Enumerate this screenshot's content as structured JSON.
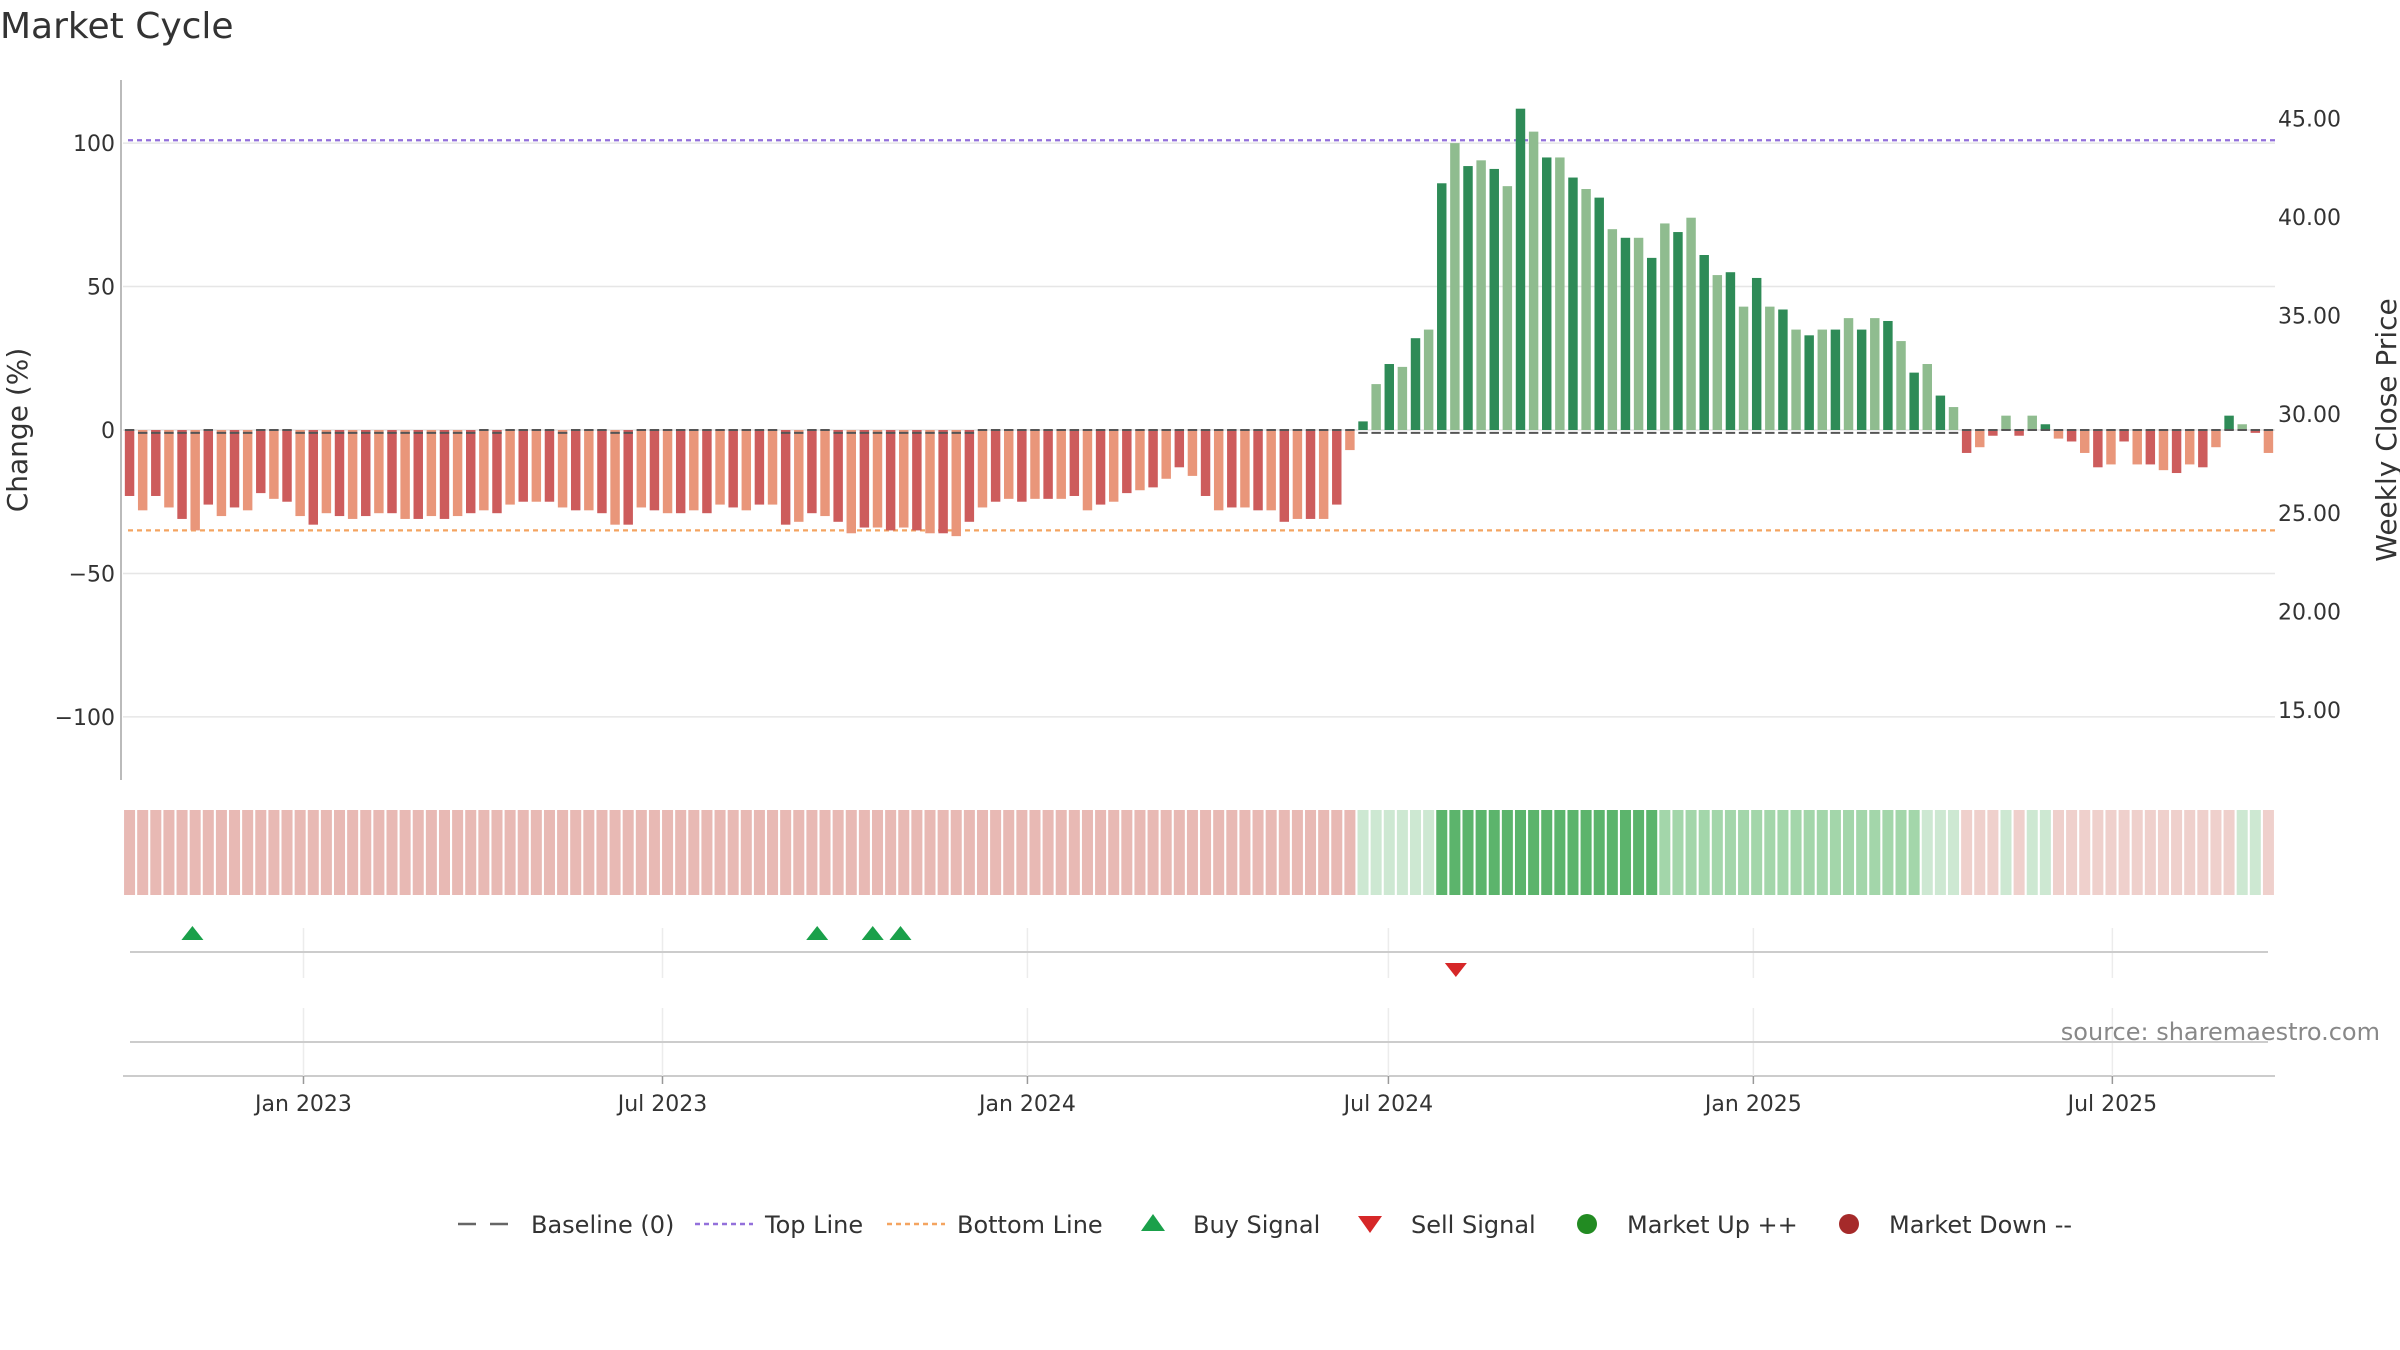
{
  "chart_data": {
    "type": "bar",
    "title": "Market Cycle",
    "ylabel_left": "Change (%)",
    "ylabel_right": "Weekly Close Price",
    "ylim_left": [
      -122,
      122
    ],
    "ylim_right": [
      11.45,
      46.95
    ],
    "yticks_left": [
      100,
      50,
      0,
      -50,
      -100
    ],
    "ytick_labels_left": [
      "100",
      "50",
      "0",
      "−100"
    ],
    "ytick_labels_left_full": [
      "100",
      "50",
      "0",
      "−50",
      "−100"
    ],
    "yticks_right": [
      45,
      40,
      35,
      30,
      25,
      20,
      15
    ],
    "ytick_labels_right": [
      "45.00",
      "40.00",
      "35.00",
      "30.00",
      "25.00",
      "20.00",
      "15.00"
    ],
    "x_start": "2022-10-02",
    "x_end": "2025-09-21",
    "xticks": [
      {
        "date": "2023-01-01",
        "label": "Jan 2023"
      },
      {
        "date": "2023-07-01",
        "label": "Jul 2023"
      },
      {
        "date": "2024-01-01",
        "label": "Jan 2024"
      },
      {
        "date": "2024-07-01",
        "label": "Jul 2024"
      },
      {
        "date": "2025-01-01",
        "label": "Jan 2025"
      },
      {
        "date": "2025-07-01",
        "label": "Jul 2025"
      }
    ],
    "top_line": 101,
    "bottom_line": -35,
    "baseline": 0,
    "series": [
      {
        "values": [
          -23,
          -28,
          -23,
          -27,
          -31,
          -35,
          -26,
          -30,
          -27,
          -28,
          -22,
          -24,
          -25,
          -30,
          -33,
          -29,
          -30,
          -31,
          -30,
          -29,
          -29,
          -31,
          -31,
          -30,
          -31,
          -30,
          -29,
          -28,
          -29,
          -26,
          -25,
          -25,
          -25,
          -27,
          -28,
          -28,
          -29,
          -33,
          -33,
          -27,
          -28,
          -29,
          -29,
          -28,
          -29,
          -26,
          -27,
          -28,
          -26,
          -26,
          -33,
          -32,
          -29,
          -30,
          -32,
          -36,
          -34,
          -34,
          -35,
          -34,
          -35,
          -36,
          -36,
          -37,
          -32,
          -27,
          -25,
          -24,
          -25,
          -24,
          -24,
          -24,
          -23,
          -28,
          -26,
          -25,
          -22,
          -21,
          -20,
          -17,
          -13,
          -16,
          -23,
          -28,
          -27,
          -27,
          -28,
          -28,
          -32,
          -31,
          -31,
          -31,
          -26,
          -7,
          3,
          16,
          23,
          22,
          32,
          35,
          86,
          100,
          92,
          94,
          91,
          85,
          112,
          104,
          95,
          95,
          88,
          84,
          81,
          70,
          67,
          67,
          60,
          72,
          69,
          74,
          61,
          54,
          55,
          43,
          53,
          43,
          42,
          35,
          33,
          35,
          35,
          39,
          35,
          39,
          38,
          31,
          20,
          23,
          12,
          8,
          -8,
          -6,
          -2,
          5,
          -2,
          5,
          2,
          -3,
          -4,
          -8,
          -13,
          -12,
          -4,
          -12,
          -12,
          -14,
          -15,
          -12,
          -13,
          -6,
          5,
          2,
          -1,
          -8
        ]
      },
      {
        "values": [
          0,
          -1,
          -1,
          -1,
          -1,
          -1,
          0,
          -1,
          -1,
          -1,
          0,
          0,
          0,
          -1,
          -1,
          -1,
          -1,
          -1,
          -1,
          -1,
          -1,
          -1,
          -1,
          -1,
          -1,
          -1,
          -1,
          0,
          -1,
          0,
          0,
          0,
          0,
          -1,
          0,
          0,
          0,
          -1,
          -1,
          0,
          0,
          0,
          0,
          0,
          0,
          0,
          0,
          0,
          0,
          0,
          -1,
          -1,
          0,
          0,
          -1,
          -1,
          -1,
          -1,
          -1,
          -1,
          -1,
          -1,
          -1,
          -1,
          -1,
          0,
          0,
          0,
          0,
          0,
          0,
          0,
          0,
          0,
          0,
          0,
          0,
          0,
          0,
          0,
          0,
          0,
          0,
          0,
          0,
          0,
          0,
          0,
          0,
          0,
          0,
          0,
          0,
          0,
          -1,
          -1,
          -1,
          -1,
          -1,
          -1,
          -1,
          -1,
          -1,
          -1,
          -1,
          -1,
          -1,
          -1,
          -1,
          -1,
          -1,
          -1,
          -1,
          -1,
          -1,
          -1,
          -1,
          -1,
          -1,
          -1,
          -1,
          -1,
          -1,
          -1,
          -1,
          -1,
          -1,
          -1,
          -1,
          -1,
          -1,
          -1,
          -1,
          -1,
          -1,
          -1,
          -1,
          -1,
          -1,
          -1,
          0,
          0,
          0,
          0,
          0,
          0,
          0,
          0,
          0,
          0,
          0,
          0,
          0,
          0,
          0,
          0,
          0,
          0,
          0,
          0,
          0,
          0,
          0,
          0
        ]
      }
    ],
    "band_levels": [
      1,
      1,
      1,
      1,
      1,
      1,
      1,
      1,
      1,
      1,
      1,
      1,
      1,
      1,
      1,
      1,
      1,
      1,
      1,
      1,
      1,
      1,
      1,
      1,
      1,
      1,
      1,
      1,
      1,
      1,
      1,
      1,
      1,
      1,
      1,
      1,
      1,
      1,
      1,
      1,
      1,
      1,
      1,
      1,
      1,
      1,
      1,
      1,
      1,
      1,
      1,
      1,
      1,
      1,
      1,
      1,
      1,
      1,
      1,
      1,
      1,
      1,
      1,
      1,
      1,
      1,
      1,
      1,
      1,
      1,
      1,
      1,
      1,
      1,
      1,
      1,
      1,
      1,
      1,
      1,
      1,
      1,
      1,
      1,
      1,
      1,
      1,
      1,
      1,
      1,
      1,
      1,
      1,
      1,
      2,
      2,
      2,
      2,
      2,
      2,
      4,
      4,
      4,
      4,
      4,
      4,
      4,
      4,
      4,
      4,
      4,
      4,
      4,
      4,
      4,
      4,
      4,
      3,
      3,
      3,
      3,
      3,
      3,
      3,
      3,
      3,
      3,
      3,
      3,
      3,
      3,
      3,
      3,
      3,
      3,
      3,
      3,
      2,
      2,
      2,
      0,
      0,
      0,
      2,
      0,
      2,
      2,
      0,
      0,
      0,
      0,
      0,
      0,
      0,
      0,
      0,
      0,
      0,
      0,
      0,
      0,
      2,
      2,
      0
    ],
    "buy_signals": [
      "2022-11-06",
      "2023-09-17",
      "2023-10-15",
      "2023-10-29"
    ],
    "sell_signals": [
      "2024-08-04"
    ],
    "legend": [
      "Baseline (0)",
      "Top Line",
      "Bottom Line",
      "Buy Signal",
      "Sell Signal",
      "Market Up ++",
      "Market Down --"
    ],
    "legend_placement": "bottom-center",
    "grid": true
  },
  "source": "source: sharemaestro.com",
  "colors": {
    "down_dark": "#cd5c5c",
    "down_light": "#e9967a",
    "up_dark": "#2e8b57",
    "up_light": "#8fbc8f",
    "top_line": "#9370db",
    "bottom_line": "#f4a460",
    "buy": "#1aa04a",
    "sell": "#d62728",
    "market_up": "#228b22",
    "market_down": "#a52a2a"
  }
}
